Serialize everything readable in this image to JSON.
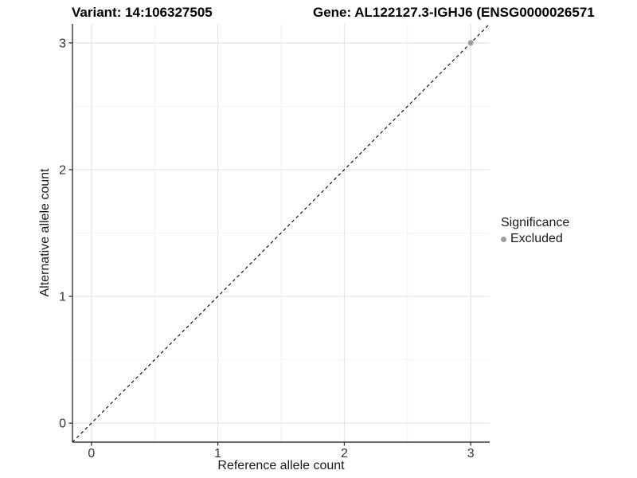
{
  "header": {
    "variant_label": "Variant: 14:106327505",
    "gene_label": "Gene: AL122127.3-IGHJ6 (ENSG0000026571"
  },
  "chart_data": {
    "type": "scatter",
    "title": "Variant: 14:106327505  |  Gene: AL122127.3-IGHJ6 (ENSG0000026571",
    "xlabel": "Reference allele count",
    "ylabel": "Alternative allele count",
    "xlim": [
      -0.15,
      3.15
    ],
    "ylim": [
      -0.15,
      3.15
    ],
    "x_ticks": [
      0,
      1,
      2,
      3
    ],
    "y_ticks": [
      0,
      1,
      2,
      3
    ],
    "x_minor_ticks": [
      0.5,
      1.5,
      2.5
    ],
    "y_minor_ticks": [
      0.5,
      1.5,
      2.5
    ],
    "grid": "major+minor",
    "series": [
      {
        "name": "Excluded",
        "color": "#9e9e9e",
        "points": [
          {
            "x": 3,
            "y": 3
          }
        ]
      }
    ],
    "reference_line": {
      "type": "identity y=x",
      "style": "dashed",
      "from": [
        -0.15,
        -0.15
      ],
      "to": [
        3.15,
        3.15
      ]
    },
    "legend": {
      "position": "right",
      "title": "Significance",
      "entries": [
        {
          "label": "Excluded",
          "color": "#9e9e9e"
        }
      ]
    },
    "colors": {
      "major_grid": "#e5e5e5",
      "minor_grid": "#f2f2f2",
      "axis": "#333333",
      "tick": "#333333",
      "identity_line": "#000000",
      "background": "#ffffff"
    }
  }
}
